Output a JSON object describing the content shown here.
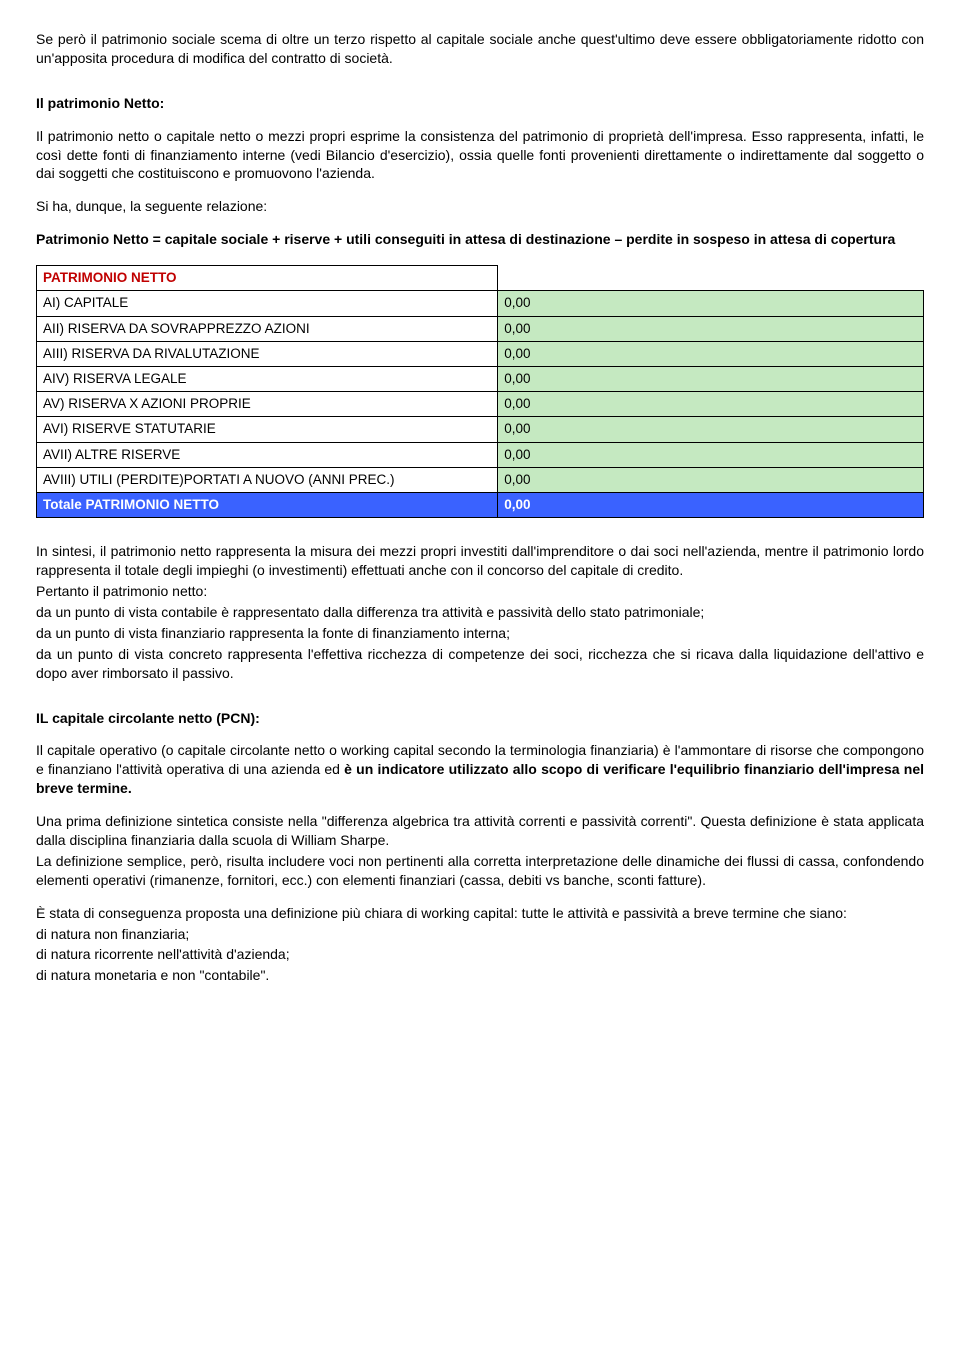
{
  "intro": {
    "p1": "Se però il patrimonio sociale scema di oltre un terzo rispetto al capitale sociale anche quest'ultimo deve essere obbligatoriamente ridotto con un'apposita procedura di modifica del contratto di società."
  },
  "netto": {
    "title": "Il patrimonio Netto:",
    "p1": "Il patrimonio netto o capitale netto o mezzi propri esprime la consistenza del patrimonio di proprietà dell'impresa. Esso rappresenta, infatti, le così dette fonti di finanziamento interne (vedi Bilancio d'esercizio), ossia quelle fonti provenienti direttamente o indirettamente dal soggetto o dai soggetti che costituiscono e promuovono l'azienda.",
    "p2": "Si ha, dunque, la seguente relazione:",
    "formula": "Patrimonio Netto = capitale sociale + riserve + utili conseguiti in attesa di destinazione – perdite in sospeso in attesa di copertura"
  },
  "table": {
    "header": "PATRIMONIO NETTO",
    "rows": [
      {
        "label": "AI)    CAPITALE",
        "value": "0,00"
      },
      {
        "label": "AII)  RISERVA DA SOVRAPPREZZO AZIONI",
        "value": "0,00"
      },
      {
        "label": "AIII) RISERVA DA RIVALUTAZIONE",
        "value": "0,00"
      },
      {
        "label": "AIV)  RISERVA LEGALE",
        "value": "0,00"
      },
      {
        "label": "AV)   RISERVA X AZIONI PROPRIE",
        "value": "0,00"
      },
      {
        "label": "AVI)  RISERVE STATUTARIE",
        "value": "0,00"
      },
      {
        "label": "AVII) ALTRE RISERVE",
        "value": "0,00"
      },
      {
        "label": "AVIII)  UTILI (PERDITE)PORTATI A NUOVO (ANNI PREC.)",
        "value": "0,00"
      }
    ],
    "total_label": "Totale PATRIMONIO NETTO",
    "total_value": "0,00"
  },
  "sintesi": {
    "p1": "In sintesi, il patrimonio netto rappresenta la misura dei mezzi propri investiti dall'imprenditore o dai soci nell'azienda, mentre il patrimonio lordo rappresenta il totale degli impieghi (o investimenti) effettuati anche con il concorso del capitale di credito.",
    "lead": " Pertanto il patrimonio netto:",
    "bul1": "da un punto di vista contabile è rappresentato dalla differenza tra attività e passività dello stato patrimoniale;",
    "bul2": "da un punto di vista finanziario rappresenta la fonte di finanziamento interna;",
    "bul3": "da un punto di vista concreto rappresenta l'effettiva ricchezza di competenze dei soci, ricchezza che si ricava dalla liquidazione dell'attivo e dopo aver rimborsato il passivo."
  },
  "pcn": {
    "title": "IL capitale circolante netto (PCN):",
    "p1a": "Il capitale operativo (o capitale circolante netto o working capital secondo la terminologia finanziaria) è l'ammontare di risorse che compongono e finanziano l'attività operativa di una azienda ed ",
    "p1b": "è un indicatore utilizzato allo scopo di verificare l'equilibrio finanziario dell'impresa nel breve termine.",
    "p2": "Una prima definizione sintetica consiste nella \"differenza algebrica tra attività correnti e passività correnti\". Questa definizione è stata applicata dalla disciplina finanziaria dalla scuola di William Sharpe.",
    "p3": " La definizione semplice, però, risulta includere voci non pertinenti alla corretta interpretazione delle dinamiche dei flussi di cassa, confondendo elementi operativi (rimanenze, fornitori, ecc.) con elementi finanziari (cassa, debiti vs banche, sconti fatture).",
    "p4": "È stata di conseguenza proposta una definizione più chiara di working capital: tutte le attività e passività a breve termine che siano:",
    "b1": "di natura non finanziaria;",
    "b2": "di natura ricorrente nell'attività d'azienda;",
    "b3": "di natura monetaria e non \"contabile\"."
  }
}
